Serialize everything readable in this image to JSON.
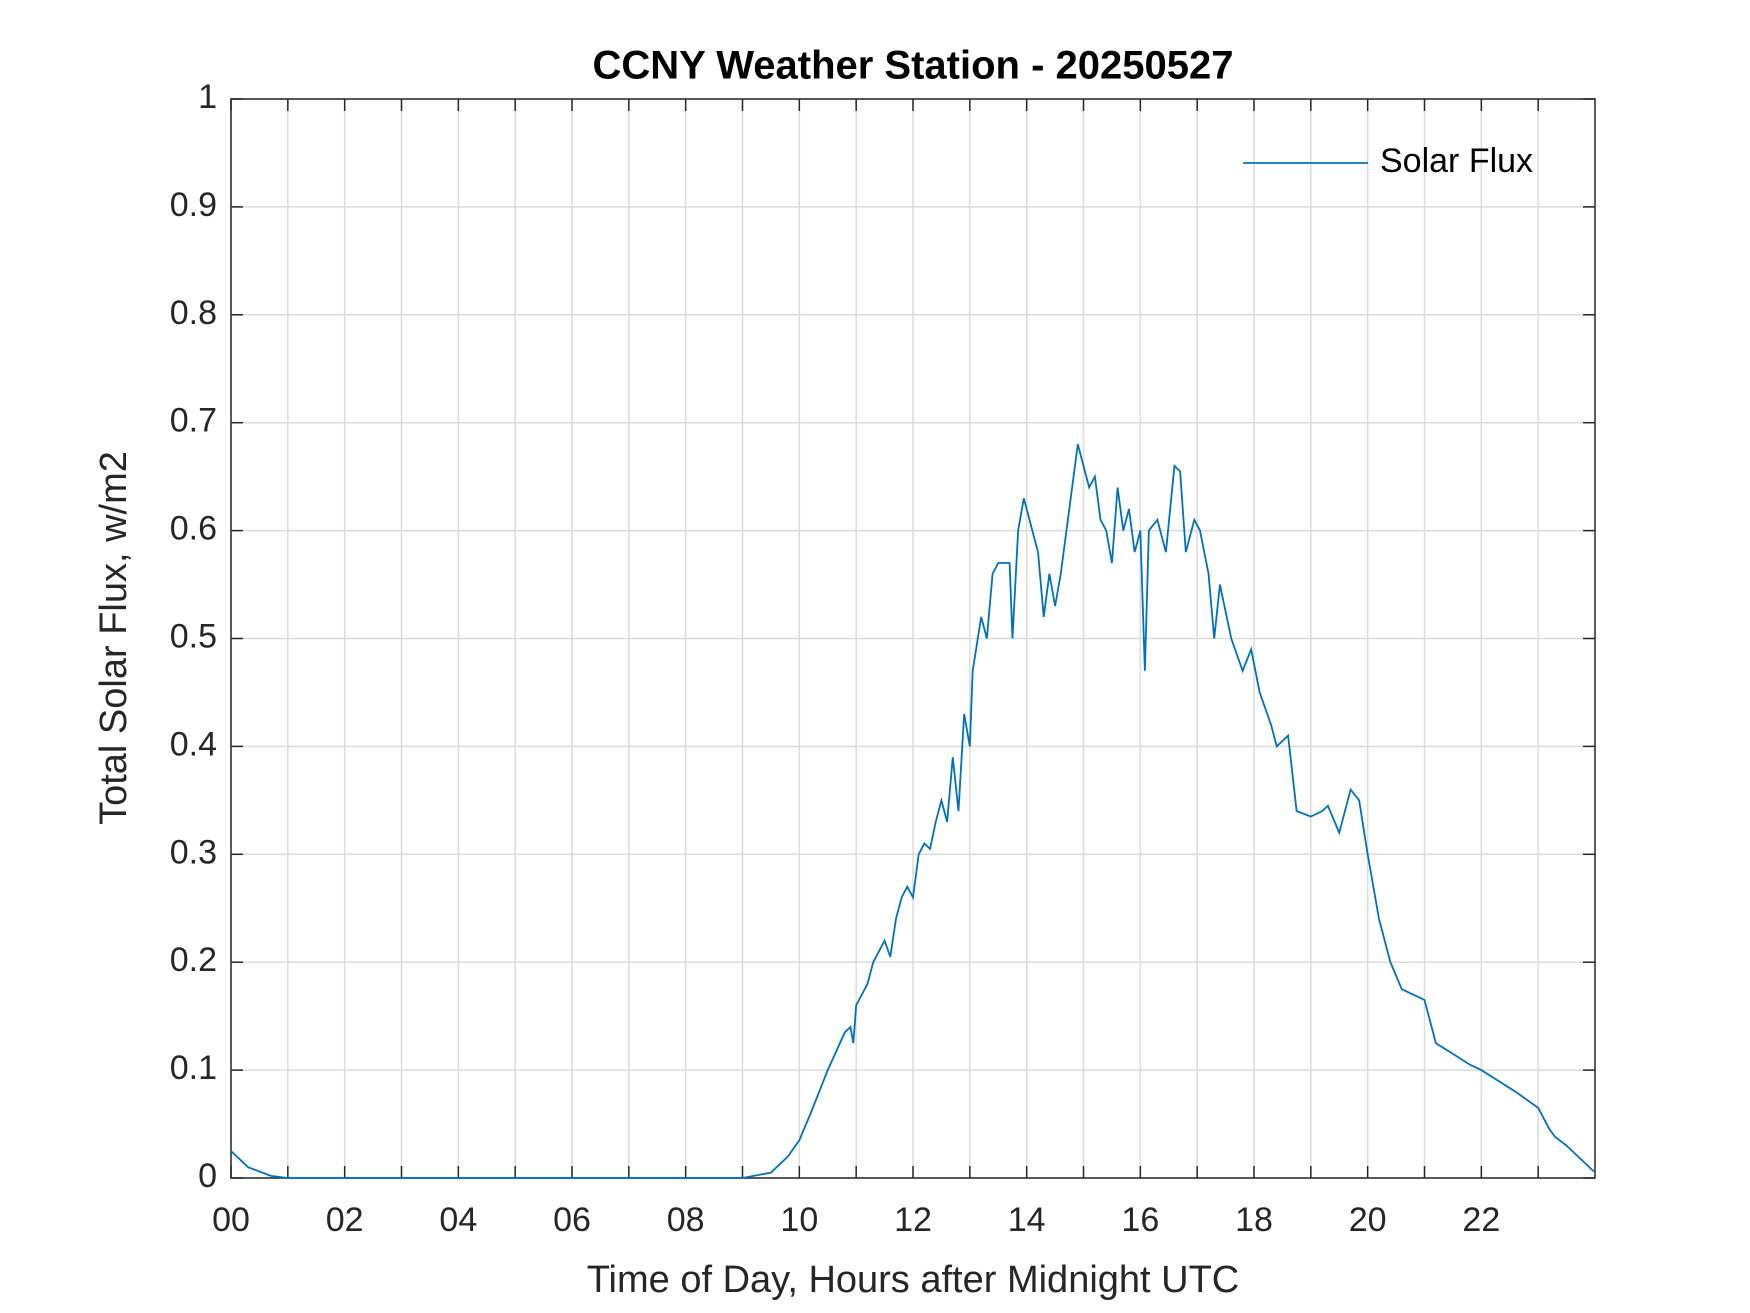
{
  "chart_data": {
    "type": "line",
    "title": "CCNY Weather Station - 20250527",
    "x_label": "Time of Day, Hours after Midnight UTC",
    "y_label": "Total Solar Flux, w/m2",
    "xlim": [
      0,
      24
    ],
    "ylim": [
      0,
      1
    ],
    "xticks": [
      {
        "value": 0,
        "label": "00"
      },
      {
        "value": 2,
        "label": "02"
      },
      {
        "value": 4,
        "label": "04"
      },
      {
        "value": 6,
        "label": "06"
      },
      {
        "value": 8,
        "label": "08"
      },
      10,
      12,
      14,
      16,
      18,
      20,
      22
    ],
    "x_minor_ticks": [
      1,
      3,
      5,
      7,
      9,
      11,
      13,
      15,
      17,
      19,
      21,
      23
    ],
    "yticks": [
      0,
      0.1,
      0.2,
      0.3,
      0.4,
      0.5,
      0.6,
      0.7,
      0.8,
      0.9,
      1
    ],
    "grid": true,
    "legend": "upper right",
    "x": [
      0,
      0.3,
      0.7,
      1,
      9,
      9.5,
      9.8,
      10,
      10.2,
      10.5,
      10.8,
      10.9,
      10.95,
      11,
      11.2,
      11.3,
      11.5,
      11.6,
      11.7,
      11.8,
      11.9,
      12,
      12.1,
      12.2,
      12.3,
      12.4,
      12.5,
      12.6,
      12.7,
      12.8,
      12.9,
      13,
      13.05,
      13.2,
      13.3,
      13.4,
      13.5,
      13.7,
      13.75,
      13.85,
      13.95,
      14.1,
      14.2,
      14.3,
      14.4,
      14.5,
      14.6,
      14.75,
      14.9,
      15,
      15.1,
      15.2,
      15.3,
      15.4,
      15.5,
      15.6,
      15.7,
      15.8,
      15.9,
      16,
      16.08,
      16.15,
      16.3,
      16.45,
      16.6,
      16.7,
      16.8,
      16.95,
      17.05,
      17.2,
      17.3,
      17.4,
      17.6,
      17.8,
      17.95,
      18.1,
      18.3,
      18.4,
      18.6,
      18.75,
      19,
      19.2,
      19.3,
      19.5,
      19.7,
      19.85,
      20,
      20.2,
      20.4,
      20.6,
      20.8,
      21,
      21.2,
      21.5,
      21.8,
      22,
      22.3,
      22.6,
      23,
      23.2,
      23.3,
      23.5,
      23.98
    ],
    "series": [
      {
        "name": "Solar Flux",
        "color": "#0072bd",
        "values": [
          0.025,
          0.01,
          0.002,
          0,
          0,
          0.005,
          0.02,
          0.035,
          0.06,
          0.1,
          0.135,
          0.14,
          0.125,
          0.16,
          0.18,
          0.2,
          0.22,
          0.205,
          0.24,
          0.26,
          0.27,
          0.26,
          0.3,
          0.31,
          0.305,
          0.33,
          0.35,
          0.33,
          0.39,
          0.34,
          0.43,
          0.4,
          0.47,
          0.52,
          0.5,
          0.56,
          0.57,
          0.57,
          0.5,
          0.6,
          0.63,
          0.6,
          0.58,
          0.52,
          0.56,
          0.53,
          0.56,
          0.62,
          0.68,
          0.66,
          0.64,
          0.65,
          0.61,
          0.6,
          0.57,
          0.64,
          0.6,
          0.62,
          0.58,
          0.6,
          0.47,
          0.6,
          0.61,
          0.58,
          0.66,
          0.655,
          0.58,
          0.61,
          0.6,
          0.56,
          0.5,
          0.55,
          0.5,
          0.47,
          0.49,
          0.45,
          0.42,
          0.4,
          0.41,
          0.34,
          0.335,
          0.34,
          0.345,
          0.32,
          0.36,
          0.35,
          0.3,
          0.24,
          0.2,
          0.175,
          0.17,
          0.165,
          0.125,
          0.115,
          0.105,
          0.1,
          0.09,
          0.08,
          0.065,
          0.045,
          0.038,
          0.03,
          0.006
        ]
      }
    ]
  }
}
